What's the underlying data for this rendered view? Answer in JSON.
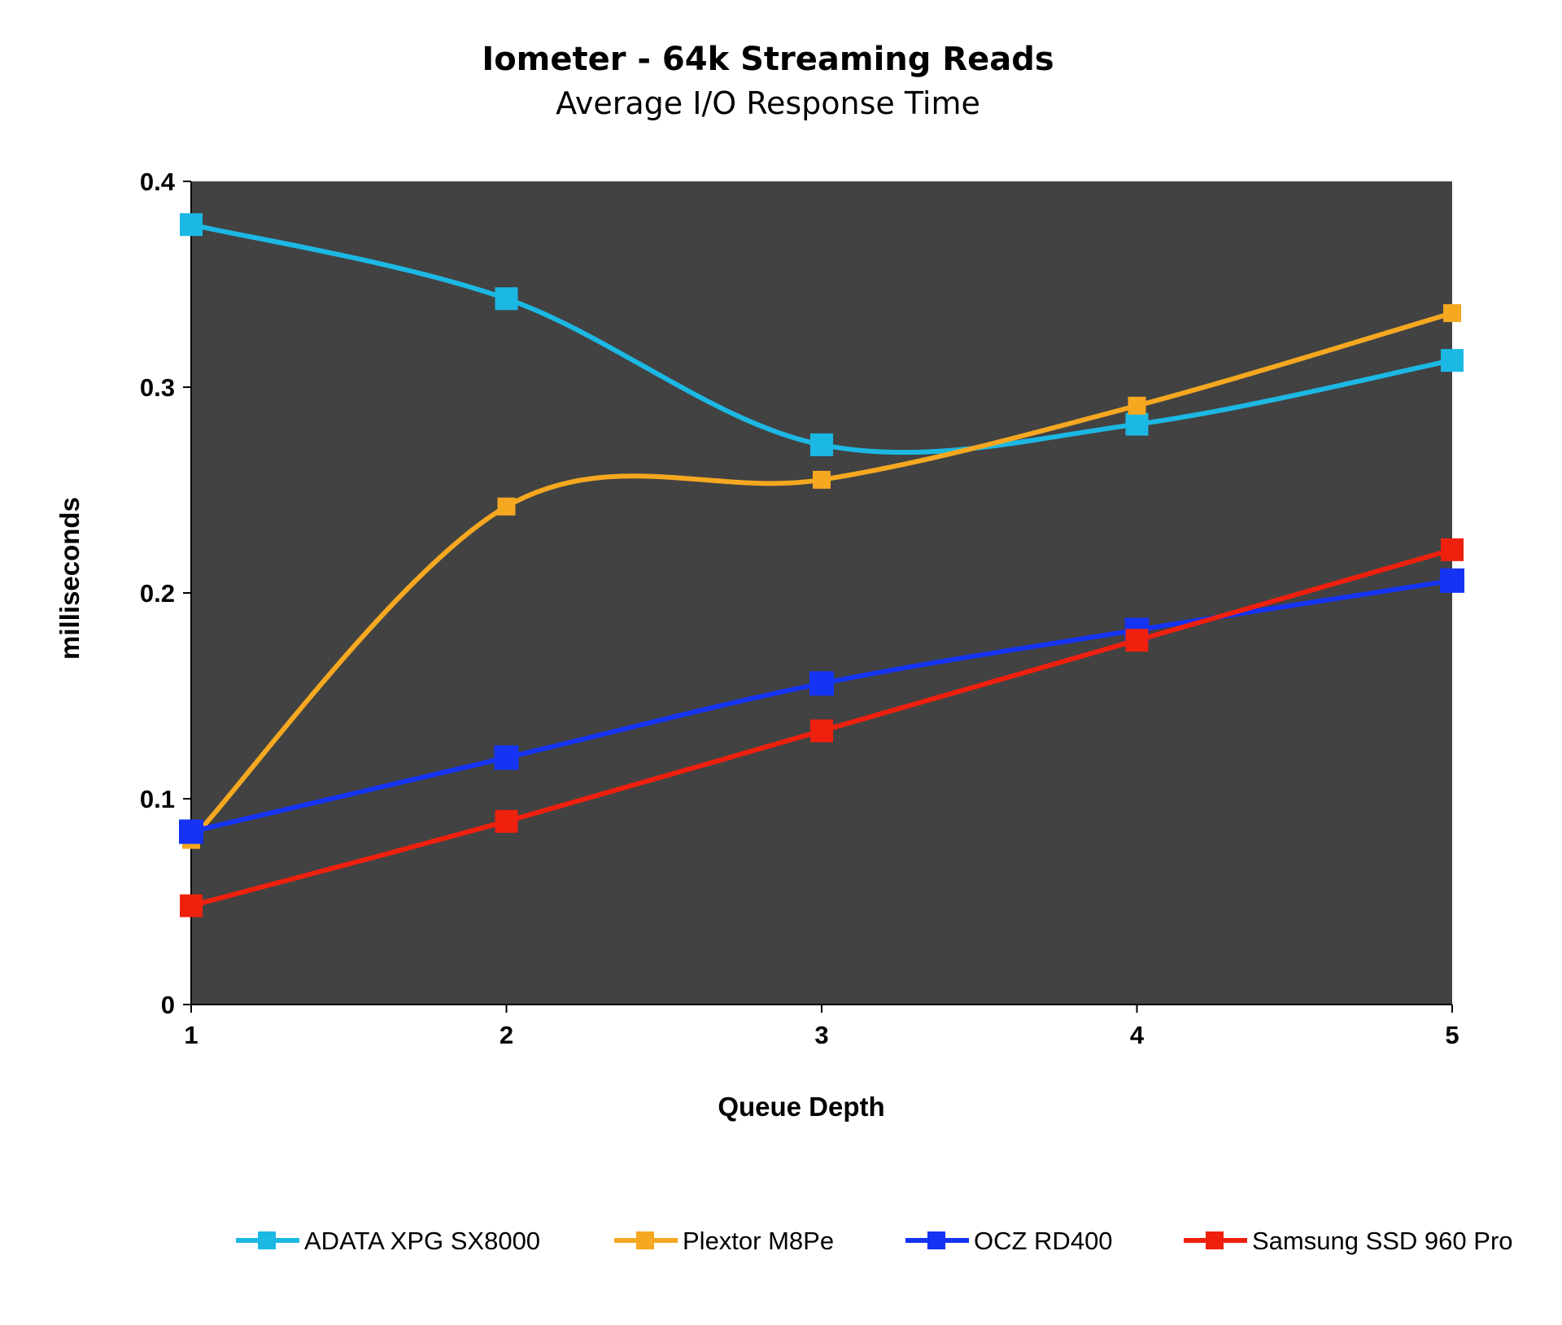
{
  "chart_data": {
    "type": "line",
    "title": "Iometer - 64k Streaming Reads",
    "subtitle": "Average I/O Response Time",
    "xlabel": "Queue Depth",
    "ylabel": "milliseconds",
    "x": [
      1,
      2,
      3,
      4,
      5
    ],
    "x_tick_labels": [
      "1",
      "2",
      "3",
      "4",
      "5"
    ],
    "ylim": [
      0,
      0.4
    ],
    "y_tick_labels": [
      "0",
      "0.1",
      "0.2",
      "0.3",
      "0.4"
    ],
    "y_ticks": [
      0,
      0.1,
      0.2,
      0.3,
      0.4
    ],
    "plot_background": "#424242",
    "grid": false,
    "legend_position": "bottom",
    "series": [
      {
        "name": "ADATA XPG SX8000",
        "color": "#1cb8e4",
        "values": [
          0.379,
          0.343,
          0.272,
          0.282,
          0.313
        ]
      },
      {
        "name": "Plextor M8Pe",
        "color": "#f5a820",
        "values": [
          0.08,
          0.242,
          0.255,
          0.291,
          0.336
        ]
      },
      {
        "name": "OCZ RD400",
        "color": "#1433f2",
        "values": [
          0.084,
          0.12,
          0.156,
          0.182,
          0.206
        ]
      },
      {
        "name": "Samsung SSD 960 Pro",
        "color": "#f0200e",
        "values": [
          0.048,
          0.089,
          0.133,
          0.177,
          0.221
        ]
      }
    ]
  }
}
